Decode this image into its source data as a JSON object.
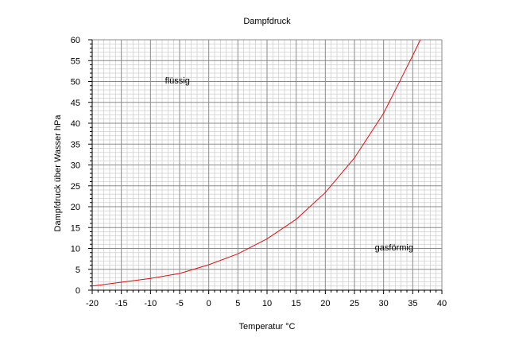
{
  "chart_data": {
    "type": "line",
    "title": "Dampfdruck",
    "xlabel": "Temperatur  °C",
    "ylabel": "Dampfdruck über Wasser  hPa",
    "xlim": [
      -20,
      40
    ],
    "ylim": [
      0,
      60
    ],
    "x_ticks": [
      "-20",
      "-15",
      "-10",
      "-5",
      "0",
      "5",
      "10",
      "15",
      "20",
      "25",
      "30",
      "35",
      "40"
    ],
    "y_ticks": [
      "0",
      "5",
      "10",
      "15",
      "20",
      "25",
      "30",
      "35",
      "40",
      "45",
      "50",
      "55",
      "60"
    ],
    "grid": true,
    "annotations": [
      {
        "text": "flüssig",
        "x": -7.5,
        "y": 49.5
      },
      {
        "text": "gasförmig",
        "x": 28.5,
        "y": 9.5
      }
    ],
    "series": [
      {
        "color": "#e01010",
        "x": [
          -20,
          -15,
          -10,
          -5,
          0,
          5,
          10,
          15,
          20,
          25,
          30,
          35,
          36.3
        ],
        "y": [
          1.0,
          1.9,
          2.8,
          4.0,
          6.1,
          8.7,
          12.3,
          17.0,
          23.4,
          31.7,
          42.4,
          56.2,
          60.0
        ]
      }
    ]
  }
}
